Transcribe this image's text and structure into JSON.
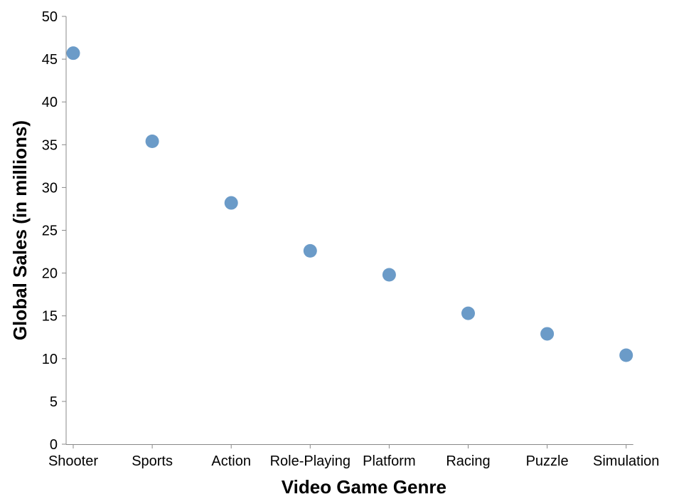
{
  "chart_data": {
    "type": "scatter",
    "title": "",
    "xlabel": "Video Game Genre",
    "ylabel": "Global Sales (in millions)",
    "categories": [
      "Shooter",
      "Sports",
      "Action",
      "Role-Playing",
      "Platform",
      "Racing",
      "Puzzle",
      "Simulation"
    ],
    "values": [
      45.7,
      35.4,
      28.2,
      22.6,
      19.8,
      15.3,
      12.9,
      10.4
    ],
    "ylim": [
      0,
      50
    ],
    "yticks": [
      "0",
      "5",
      "10",
      "15",
      "20",
      "25",
      "30",
      "35",
      "40",
      "45",
      "50"
    ],
    "grid": false,
    "point_color": "#6b9bc8"
  }
}
